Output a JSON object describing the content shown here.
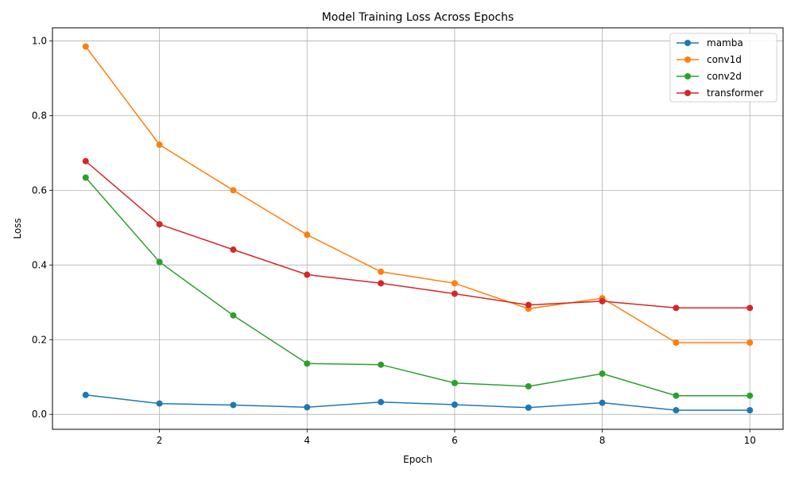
{
  "chart_data": {
    "type": "line",
    "title": "Model Training Loss Across Epochs",
    "xlabel": "Epoch",
    "ylabel": "Loss",
    "xlim": [
      0.55,
      10.45
    ],
    "ylim": [
      -0.04,
      1.035
    ],
    "xticks": [
      2,
      4,
      6,
      8,
      10
    ],
    "yticks": [
      0.0,
      0.2,
      0.4,
      0.6,
      0.8,
      1.0
    ],
    "xtick_labels": [
      "2",
      "4",
      "6",
      "8",
      "10"
    ],
    "ytick_labels": [
      "0.0",
      "0.2",
      "0.4",
      "0.6",
      "0.8",
      "1.0"
    ],
    "grid": true,
    "legend_position": "top-right",
    "x": [
      1,
      2,
      3,
      4,
      5,
      6,
      7,
      8,
      9,
      10
    ],
    "series": [
      {
        "name": "mamba",
        "color": "#1f77b4",
        "values": [
          0.052,
          0.029,
          0.025,
          0.019,
          0.033,
          0.026,
          0.018,
          0.031,
          0.011,
          0.011
        ]
      },
      {
        "name": "conv1d",
        "color": "#ff7f0e",
        "values": [
          0.985,
          0.722,
          0.6,
          0.481,
          0.382,
          0.351,
          0.283,
          0.311,
          0.192,
          0.192
        ]
      },
      {
        "name": "conv2d",
        "color": "#2ca02c",
        "values": [
          0.634,
          0.408,
          0.265,
          0.136,
          0.133,
          0.084,
          0.075,
          0.109,
          0.05,
          0.05
        ]
      },
      {
        "name": "transformer",
        "color": "#d62728",
        "values": [
          0.678,
          0.509,
          0.441,
          0.374,
          0.351,
          0.323,
          0.293,
          0.303,
          0.285,
          0.285
        ]
      }
    ]
  }
}
